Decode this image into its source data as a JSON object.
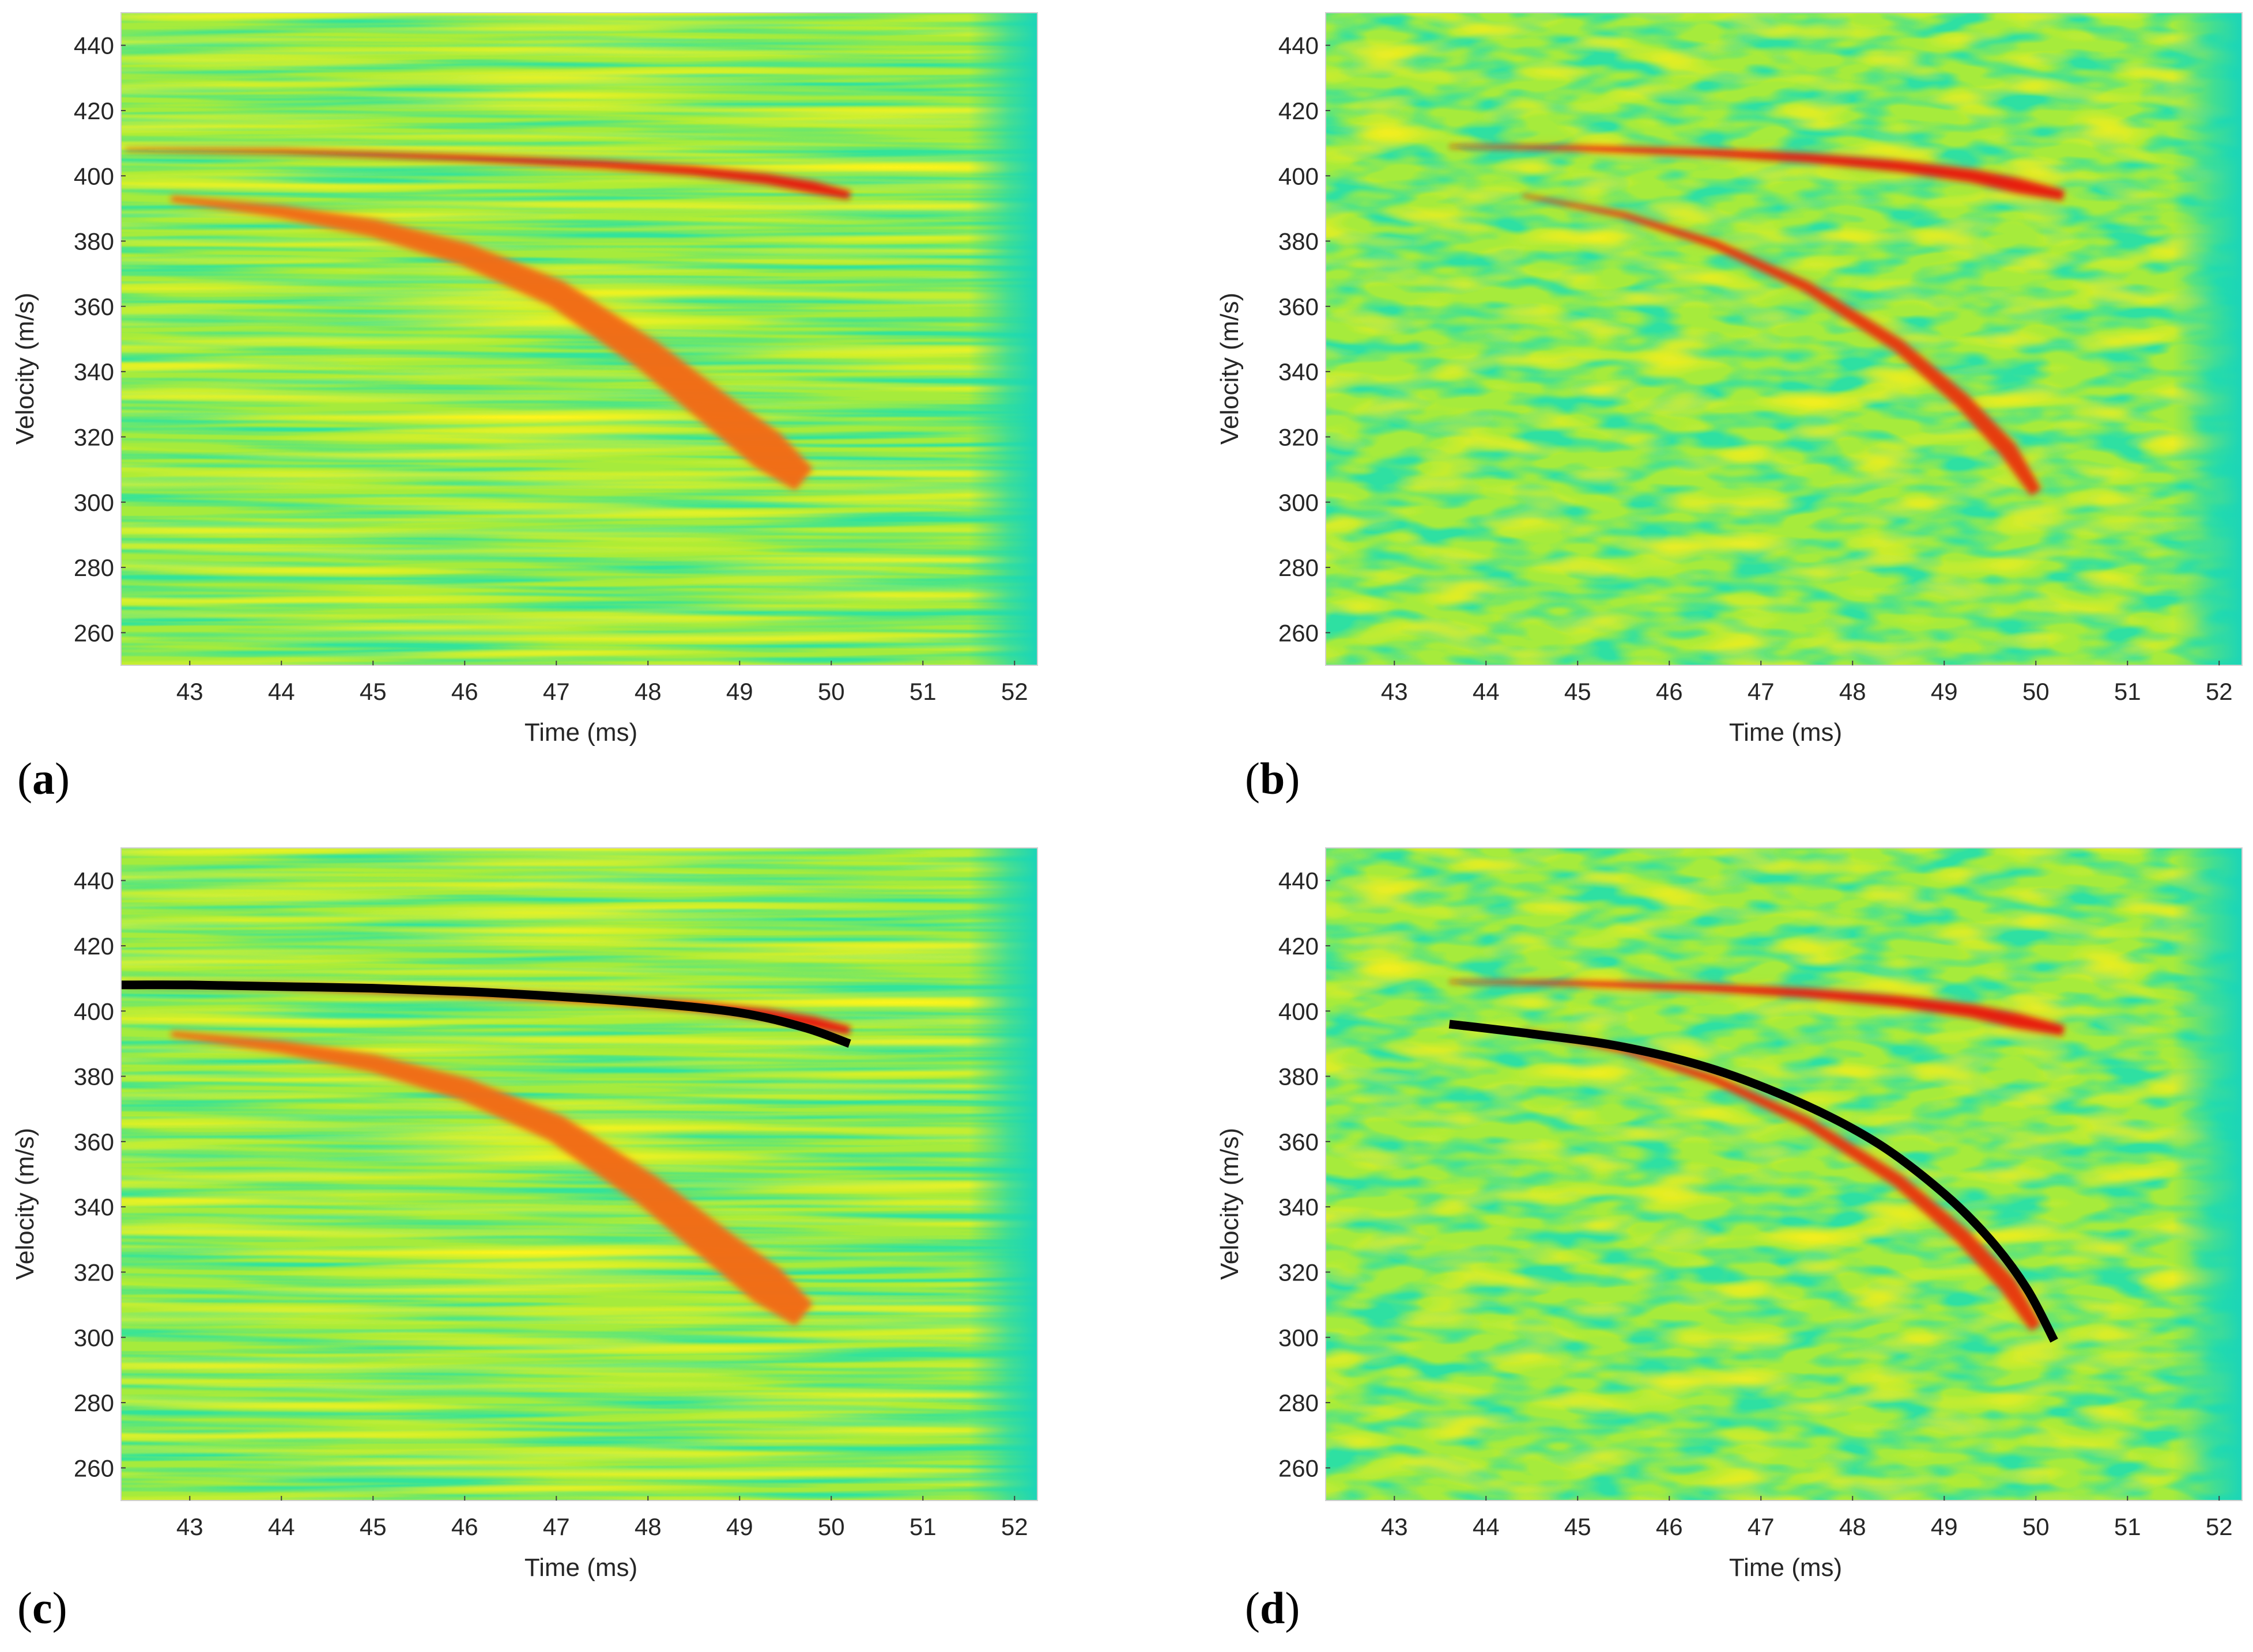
{
  "chart_data": [
    {
      "type": "heatmap",
      "panel_label": "a",
      "xlabel": "Time (ms)",
      "ylabel": "Velocity (m/s)",
      "xlim": [
        42.25,
        52.25
      ],
      "ylim": [
        250,
        450
      ],
      "x_ticks": [
        "43",
        "44",
        "45",
        "46",
        "47",
        "48",
        "49",
        "50",
        "51",
        "52"
      ],
      "y_ticks": [
        "260",
        "280",
        "300",
        "320",
        "340",
        "360",
        "380",
        "400",
        "420",
        "440"
      ],
      "background_style": "streaky",
      "features": [
        {
          "name": "upper trace",
          "color": "#e8140a",
          "width_ms_velocity": 4,
          "points": [
            [
              42.3,
              408
            ],
            [
              44,
              407.5
            ],
            [
              46,
              405.5
            ],
            [
              47.5,
              403.5
            ],
            [
              48.5,
              401.5
            ],
            [
              49.3,
              399
            ],
            [
              49.8,
              396.5
            ],
            [
              50.2,
              394
            ]
          ]
        },
        {
          "name": "lower trace",
          "color": "#f26a12",
          "width_ms_velocity": 14,
          "points": [
            [
              42.8,
              393
            ],
            [
              44,
              389
            ],
            [
              45,
              384
            ],
            [
              46,
              376
            ],
            [
              47,
              364
            ],
            [
              48,
              345
            ],
            [
              48.8,
              327
            ],
            [
              49.3,
              316
            ],
            [
              49.7,
              307
            ]
          ]
        }
      ],
      "overlay_curve": null
    },
    {
      "type": "heatmap",
      "panel_label": "b",
      "xlabel": "Time (ms)",
      "ylabel": "Velocity (m/s)",
      "xlim": [
        42.25,
        52.25
      ],
      "ylim": [
        250,
        450
      ],
      "x_ticks": [
        "43",
        "44",
        "45",
        "46",
        "47",
        "48",
        "49",
        "50",
        "51",
        "52"
      ],
      "y_ticks": [
        "260",
        "280",
        "300",
        "320",
        "340",
        "360",
        "380",
        "400",
        "420",
        "440"
      ],
      "background_style": "blobby",
      "features": [
        {
          "name": "upper trace",
          "color": "#e8140a",
          "width_ms_velocity": 5,
          "points": [
            [
              43.6,
              409
            ],
            [
              45,
              408.5
            ],
            [
              46.5,
              407
            ],
            [
              47.5,
              405.5
            ],
            [
              48.5,
              403
            ],
            [
              49.3,
              400
            ],
            [
              49.8,
              397
            ],
            [
              50.3,
              394
            ]
          ]
        },
        {
          "name": "lower trace",
          "color": "#e8340a",
          "width_ms_velocity": 6,
          "points": [
            [
              44.4,
              394
            ],
            [
              45.5,
              388
            ],
            [
              46.5,
              379
            ],
            [
              47.5,
              366
            ],
            [
              48.5,
              348
            ],
            [
              49.2,
              331
            ],
            [
              49.7,
              316
            ],
            [
              50.0,
              303
            ]
          ]
        }
      ],
      "overlay_curve": null
    },
    {
      "type": "heatmap",
      "panel_label": "c",
      "xlabel": "Time (ms)",
      "ylabel": "Velocity (m/s)",
      "xlim": [
        42.25,
        52.25
      ],
      "ylim": [
        250,
        450
      ],
      "x_ticks": [
        "43",
        "44",
        "45",
        "46",
        "47",
        "48",
        "49",
        "50",
        "51",
        "52"
      ],
      "y_ticks": [
        "260",
        "280",
        "300",
        "320",
        "340",
        "360",
        "380",
        "400",
        "420",
        "440"
      ],
      "background_style": "streaky",
      "features": [
        {
          "name": "upper trace",
          "color": "#e8140a",
          "width_ms_velocity": 4,
          "points": [
            [
              42.3,
              408
            ],
            [
              44,
              407.5
            ],
            [
              46,
              405.5
            ],
            [
              47.5,
              403.5
            ],
            [
              48.5,
              401.5
            ],
            [
              49.3,
              399
            ],
            [
              49.8,
              396.5
            ],
            [
              50.2,
              394
            ]
          ]
        },
        {
          "name": "lower trace",
          "color": "#f26a12",
          "width_ms_velocity": 14,
          "points": [
            [
              42.8,
              393
            ],
            [
              44,
              389
            ],
            [
              45,
              384
            ],
            [
              46,
              376
            ],
            [
              47,
              364
            ],
            [
              48,
              345
            ],
            [
              48.8,
              327
            ],
            [
              49.3,
              316
            ],
            [
              49.7,
              307
            ]
          ]
        }
      ],
      "overlay_curve": {
        "name": "extracted velocity curve (upper)",
        "color": "#000000",
        "points": [
          [
            42.25,
            408
          ],
          [
            43,
            408
          ],
          [
            44,
            407.5
          ],
          [
            45,
            407
          ],
          [
            46,
            406
          ],
          [
            47,
            404.5
          ],
          [
            48,
            402.5
          ],
          [
            49,
            399.5
          ],
          [
            49.7,
            395
          ],
          [
            50.2,
            390
          ]
        ]
      }
    },
    {
      "type": "heatmap",
      "panel_label": "d",
      "xlabel": "Time (ms)",
      "ylabel": "Velocity (m/s)",
      "xlim": [
        42.25,
        52.25
      ],
      "ylim": [
        250,
        450
      ],
      "x_ticks": [
        "43",
        "44",
        "45",
        "46",
        "47",
        "48",
        "49",
        "50",
        "51",
        "52"
      ],
      "y_ticks": [
        "260",
        "280",
        "300",
        "320",
        "340",
        "360",
        "380",
        "400",
        "420",
        "440"
      ],
      "background_style": "blobby",
      "features": [
        {
          "name": "upper trace",
          "color": "#e8140a",
          "width_ms_velocity": 5,
          "points": [
            [
              43.6,
              409
            ],
            [
              45,
              408.5
            ],
            [
              46.5,
              407
            ],
            [
              47.5,
              405.5
            ],
            [
              48.5,
              403
            ],
            [
              49.3,
              400
            ],
            [
              49.8,
              397
            ],
            [
              50.3,
              394
            ]
          ]
        },
        {
          "name": "lower trace",
          "color": "#e8340a",
          "width_ms_velocity": 6,
          "points": [
            [
              44.4,
              394
            ],
            [
              45.5,
              388
            ],
            [
              46.5,
              379
            ],
            [
              47.5,
              366
            ],
            [
              48.5,
              348
            ],
            [
              49.2,
              331
            ],
            [
              49.7,
              316
            ],
            [
              50.0,
              303
            ]
          ]
        }
      ],
      "overlay_curve": {
        "name": "extracted velocity curve (lower)",
        "color": "#000000",
        "points": [
          [
            43.6,
            396
          ],
          [
            44.5,
            393
          ],
          [
            45.5,
            389
          ],
          [
            46.5,
            382
          ],
          [
            47.5,
            371
          ],
          [
            48.3,
            359
          ],
          [
            49.0,
            344
          ],
          [
            49.5,
            330
          ],
          [
            49.9,
            315
          ],
          [
            50.2,
            299
          ]
        ]
      }
    }
  ],
  "colors": {
    "background_yellow": "#f2e818",
    "background_green": "#33e39a",
    "background_mid": "#a6eb3c",
    "edge_strip": "#1fd9b0"
  }
}
